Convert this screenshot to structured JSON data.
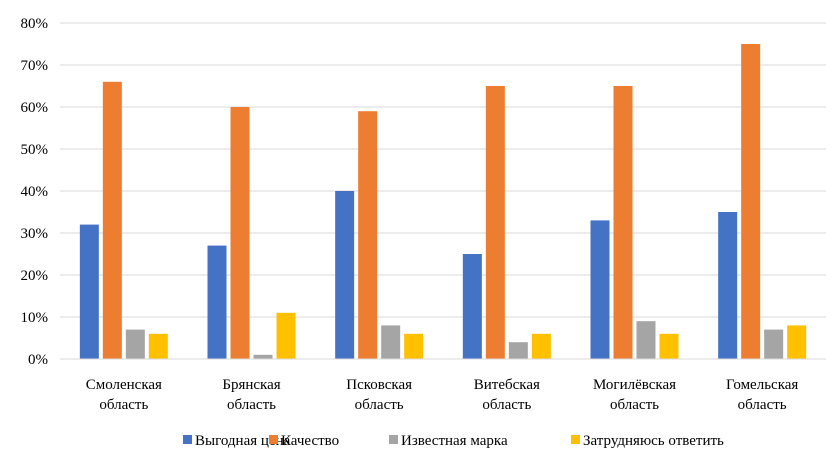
{
  "chart_data": {
    "type": "bar",
    "categories": [
      [
        "Смоленская",
        "область"
      ],
      [
        "Брянская",
        "область"
      ],
      [
        "Псковская",
        "область"
      ],
      [
        "Витебская",
        "область"
      ],
      [
        "Могилёвская",
        "область"
      ],
      [
        "Гомельская",
        "область"
      ]
    ],
    "series": [
      {
        "name": "Выгодная цена",
        "color": "#4472C4",
        "values": [
          32,
          27,
          40,
          25,
          33,
          35
        ]
      },
      {
        "name": "Качество",
        "color": "#ED7D31",
        "values": [
          66,
          60,
          59,
          65,
          65,
          75
        ]
      },
      {
        "name": "Известная марка",
        "color": "#A5A5A5",
        "values": [
          7,
          1,
          8,
          4,
          9,
          7
        ]
      },
      {
        "name": "Затрудняюсь ответить",
        "color": "#FFC000",
        "values": [
          6,
          11,
          6,
          6,
          6,
          8
        ]
      }
    ],
    "ylim": [
      0,
      80
    ],
    "yticks": [
      "0%",
      "10%",
      "20%",
      "30%",
      "40%",
      "50%",
      "60%",
      "70%",
      "80%"
    ],
    "grid": true,
    "legend_position": "bottom"
  }
}
